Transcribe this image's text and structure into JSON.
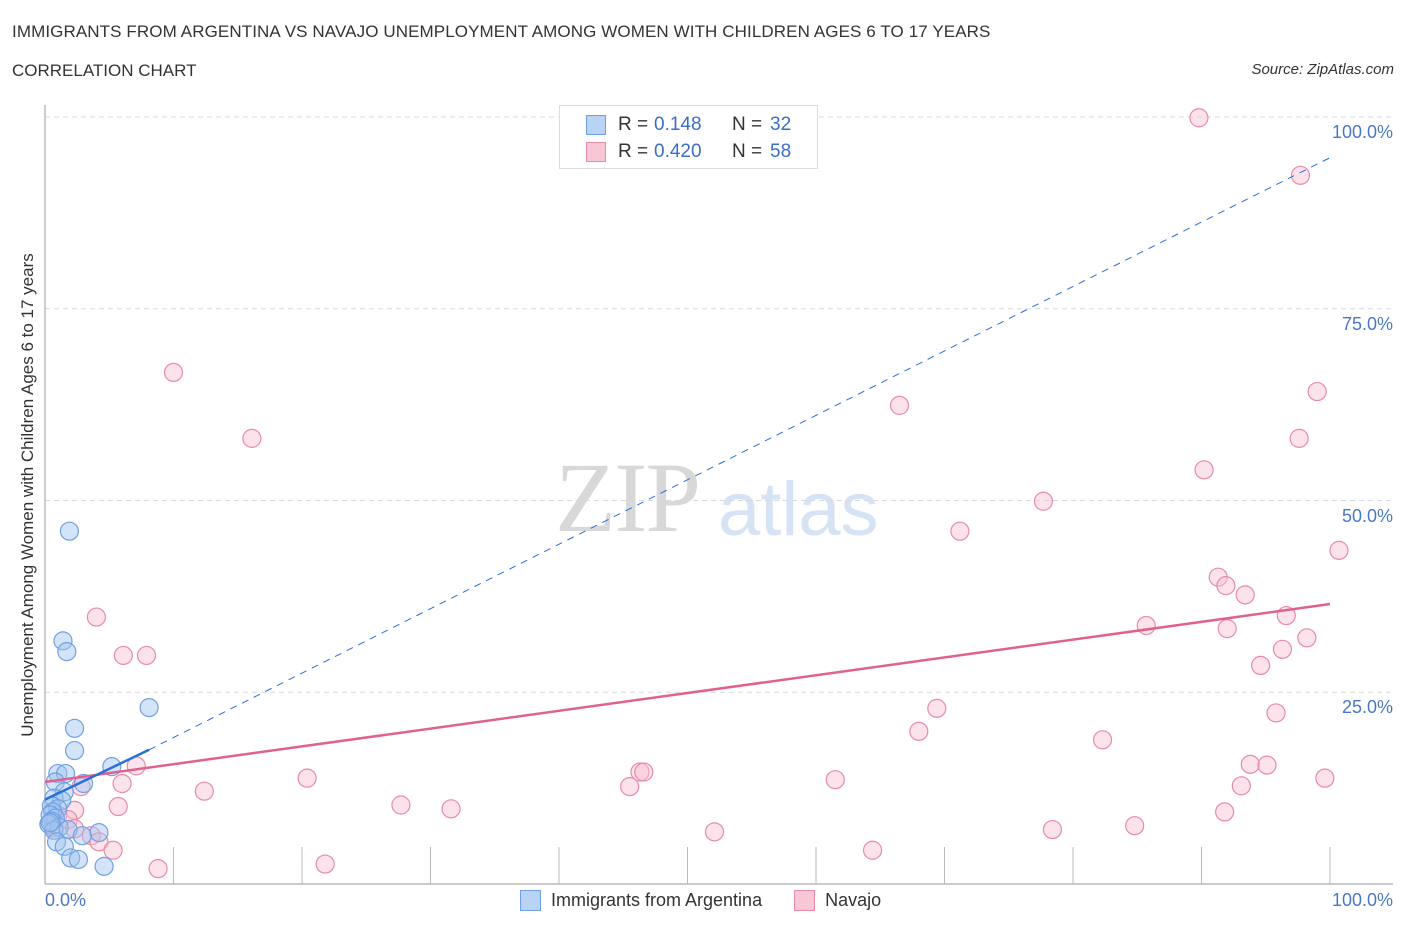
{
  "header": {
    "title": "IMMIGRANTS FROM ARGENTINA VS NAVAJO UNEMPLOYMENT AMONG WOMEN WITH CHILDREN AGES 6 TO 17 YEARS",
    "subtitle": "CORRELATION CHART",
    "source": "Source: ZipAtlas.com"
  },
  "watermark": {
    "zip": "ZIP",
    "atlas": "atlas"
  },
  "legend_stats": [
    {
      "series": "Immigrants from Argentina",
      "r_label": "R =",
      "r_value": "0.148",
      "n_label": "N =",
      "n_value": "32",
      "color": "#6fa0e0",
      "fill": "#b9d3f5"
    },
    {
      "series": "Navajo",
      "r_label": "R =",
      "r_value": "0.420",
      "n_label": "N =",
      "n_value": "58",
      "color": "#e88aa8",
      "fill": "#f8c6d5"
    }
  ],
  "axes": {
    "ylabel": "Unemployment Among Women with Children Ages 6 to 17 years",
    "x_min_label": "0.0%",
    "x_max_label": "100.0%",
    "y_ticks": [
      "100.0%",
      "75.0%",
      "50.0%",
      "25.0%"
    ]
  },
  "bottom_legend": [
    {
      "label": "Immigrants from Argentina"
    },
    {
      "label": "Navajo"
    }
  ],
  "colors": {
    "blue_stroke": "#6fa0e0",
    "blue_fill": "rgba(160,196,240,0.45)",
    "blue_line": "#2a6fd6",
    "pink_stroke": "#e88aa8",
    "pink_fill": "rgba(248,190,210,0.45)",
    "pink_line": "#e0618e",
    "grid": "#d9d9d9",
    "tick_label": "#4a78c4"
  },
  "chart_data": {
    "type": "scatter",
    "title": "Immigrants from Argentina vs Navajo Unemployment Among Women with Children Ages 6 to 17 years",
    "subtitle": "Correlation Chart",
    "xlabel": "",
    "ylabel": "Unemployment Among Women with Children Ages 6 to 17 years",
    "xlim": [
      0,
      100
    ],
    "ylim": [
      0,
      100
    ],
    "x_tick_labels": [
      "0.0%",
      "100.0%"
    ],
    "y_tick_labels": [
      "25.0%",
      "50.0%",
      "75.0%",
      "100.0%"
    ],
    "grid": true,
    "legend_position": "bottom",
    "series": [
      {
        "name": "Immigrants from Argentina",
        "R": 0.148,
        "N": 32,
        "points": [
          [
            1.9,
            46.0
          ],
          [
            1.4,
            31.7
          ],
          [
            1.7,
            30.3
          ],
          [
            8.1,
            23.0
          ],
          [
            2.3,
            20.3
          ],
          [
            2.3,
            17.4
          ],
          [
            5.2,
            15.3
          ],
          [
            1.0,
            14.4
          ],
          [
            1.6,
            14.4
          ],
          [
            3.0,
            13.1
          ],
          [
            0.8,
            13.3
          ],
          [
            1.5,
            12.0
          ],
          [
            0.7,
            11.2
          ],
          [
            1.3,
            10.9
          ],
          [
            0.5,
            10.2
          ],
          [
            1.0,
            9.8
          ],
          [
            0.6,
            9.4
          ],
          [
            0.4,
            9.0
          ],
          [
            0.8,
            8.6
          ],
          [
            0.5,
            8.2
          ],
          [
            0.3,
            7.8
          ],
          [
            1.1,
            7.4
          ],
          [
            0.7,
            7.0
          ],
          [
            1.8,
            7.1
          ],
          [
            4.2,
            6.7
          ],
          [
            2.9,
            6.3
          ],
          [
            0.9,
            5.5
          ],
          [
            1.5,
            4.9
          ],
          [
            2.0,
            3.4
          ],
          [
            2.6,
            3.2
          ],
          [
            4.6,
            2.3
          ],
          [
            0.4,
            8.0
          ]
        ],
        "trend_solid": [
          [
            0,
            11.0
          ],
          [
            8.1,
            17.5
          ]
        ],
        "trend_dashed": [
          [
            8.1,
            17.5
          ],
          [
            100,
            94.7
          ]
        ]
      },
      {
        "name": "Navajo",
        "R": 0.42,
        "N": 58,
        "points": [
          [
            89.8,
            99.9
          ],
          [
            97.7,
            92.4
          ],
          [
            10.0,
            66.7
          ],
          [
            16.1,
            58.1
          ],
          [
            66.5,
            62.4
          ],
          [
            99.0,
            64.2
          ],
          [
            97.6,
            58.1
          ],
          [
            90.2,
            54.0
          ],
          [
            77.7,
            49.9
          ],
          [
            71.2,
            46.0
          ],
          [
            100.7,
            43.5
          ],
          [
            91.3,
            40.0
          ],
          [
            91.9,
            38.9
          ],
          [
            93.4,
            37.7
          ],
          [
            85.7,
            33.7
          ],
          [
            92.0,
            33.3
          ],
          [
            96.6,
            35.0
          ],
          [
            98.2,
            32.1
          ],
          [
            94.6,
            28.5
          ],
          [
            96.3,
            30.6
          ],
          [
            4.0,
            34.8
          ],
          [
            6.1,
            29.8
          ],
          [
            7.9,
            29.8
          ],
          [
            69.4,
            22.9
          ],
          [
            95.8,
            22.3
          ],
          [
            68.0,
            19.9
          ],
          [
            82.3,
            18.8
          ],
          [
            93.8,
            15.6
          ],
          [
            95.1,
            15.5
          ],
          [
            99.6,
            13.8
          ],
          [
            93.1,
            12.8
          ],
          [
            7.1,
            15.4
          ],
          [
            20.4,
            13.8
          ],
          [
            46.3,
            14.6
          ],
          [
            46.6,
            14.6
          ],
          [
            45.5,
            12.7
          ],
          [
            61.5,
            13.6
          ],
          [
            6.0,
            13.1
          ],
          [
            2.8,
            12.7
          ],
          [
            12.4,
            12.1
          ],
          [
            27.7,
            10.3
          ],
          [
            31.6,
            9.8
          ],
          [
            5.7,
            10.1
          ],
          [
            2.3,
            9.6
          ],
          [
            1.0,
            9.0
          ],
          [
            1.8,
            8.4
          ],
          [
            2.3,
            7.2
          ],
          [
            0.7,
            7.3
          ],
          [
            3.6,
            6.3
          ],
          [
            4.2,
            5.5
          ],
          [
            5.3,
            4.4
          ],
          [
            52.1,
            6.8
          ],
          [
            78.4,
            7.1
          ],
          [
            84.8,
            7.6
          ],
          [
            91.8,
            9.4
          ],
          [
            64.4,
            4.4
          ],
          [
            21.8,
            2.6
          ],
          [
            8.8,
            2.0
          ]
        ],
        "trend": [
          [
            0,
            13.3
          ],
          [
            100,
            36.5
          ]
        ]
      }
    ]
  }
}
